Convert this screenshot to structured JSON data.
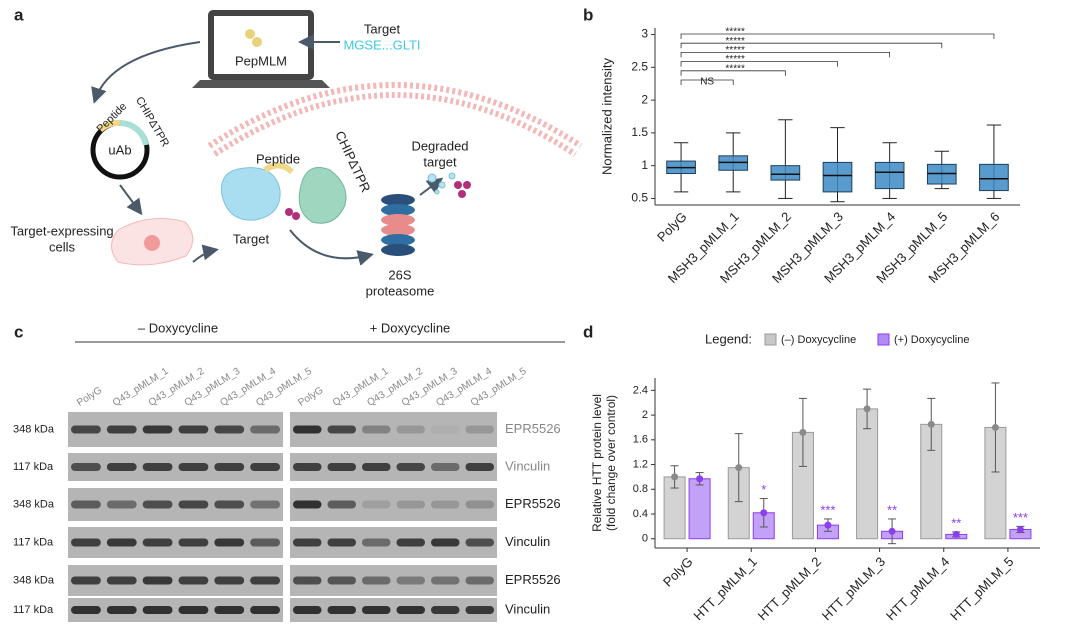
{
  "panel_a": {
    "label": "a",
    "laptop_title": "PepMLM",
    "target_label": "Target",
    "target_sequence": "MGSE...GLTI",
    "plasmid": {
      "peptide": "Peptide",
      "chip": "CHIPΔTPR",
      "center": "uAb"
    },
    "cells": [
      "Target-expressing",
      "cells"
    ],
    "complex": {
      "peptide": "Peptide",
      "chip": "CHIPΔTPR",
      "target": "Target"
    },
    "degraded": [
      "Degraded",
      "target"
    ],
    "proteasome": [
      "26S",
      "proteasome"
    ]
  },
  "chart_data": [
    {
      "type": "box",
      "panel": "b",
      "ylabel": "Normalized intensity",
      "categories": [
        "PolyG",
        "MSH3_pMLM_1",
        "MSH3_pMLM_2",
        "MSH3_pMLM_3",
        "MSH3_pMLM_4",
        "MSH3_pMLM_5",
        "MSH3_pMLM_6"
      ],
      "median": [
        0.97,
        1.05,
        0.87,
        0.85,
        0.9,
        0.88,
        0.8
      ],
      "q1": [
        0.88,
        0.93,
        0.78,
        0.6,
        0.65,
        0.72,
        0.62
      ],
      "q3": [
        1.07,
        1.15,
        1.0,
        1.05,
        1.05,
        1.02,
        1.02
      ],
      "whisker_low": [
        0.6,
        0.6,
        0.5,
        0.45,
        0.5,
        0.65,
        0.5
      ],
      "whisker_high": [
        1.35,
        1.5,
        1.7,
        1.58,
        1.35,
        1.22,
        1.62
      ],
      "color": "#3d8ac4",
      "comparisons": [
        "NS",
        "*****",
        "*****",
        "*****",
        "*****",
        "*****"
      ],
      "ylim": [
        0.4,
        3.1
      ],
      "yticks": [
        0.5,
        1.0,
        1.5,
        2.0,
        2.5,
        3.0
      ]
    },
    {
      "type": "bar",
      "panel": "d",
      "legend_title": "Legend:",
      "ylabel": [
        "Relative HTT protein level",
        "(fold change over control)"
      ],
      "categories": [
        "PolyG",
        "HTT_pMLM_1",
        "HTT_pMLM_2",
        "HTT_pMLM_3",
        "HTT_pMLM_4",
        "HTT_pMLM_5"
      ],
      "series": [
        {
          "name": "(–) Doxycycline",
          "color": "#c8c8c8",
          "edge": "#9a9a9a",
          "values": [
            1.0,
            1.15,
            1.72,
            2.1,
            1.85,
            1.8
          ],
          "errors": [
            0.18,
            0.55,
            0.55,
            0.32,
            0.42,
            0.72
          ]
        },
        {
          "name": "(+) Doxycycline",
          "color": "#b48af5",
          "edge": "#8a3ff0",
          "values": [
            0.97,
            0.42,
            0.22,
            0.12,
            0.07,
            0.15
          ],
          "errors": [
            0.1,
            0.23,
            0.1,
            0.2,
            0.04,
            0.05
          ],
          "significance": [
            null,
            "*",
            "***",
            "**",
            "**",
            "***"
          ]
        }
      ],
      "ylim": [
        -0.15,
        2.6
      ],
      "yticks": [
        0,
        0.4,
        0.8,
        1.2,
        1.6,
        2.0,
        2.4
      ]
    }
  ],
  "panel_c": {
    "label": "c",
    "conditions": [
      "– Doxycycline",
      "+ Doxycycline"
    ],
    "lanes": [
      "PolyG",
      "Q43_pMLM_1",
      "Q43_pMLM_2",
      "Q43_pMLM_3",
      "Q43_pMLM_4",
      "Q43_pMLM_5"
    ],
    "rows": [
      {
        "size": "348 kDa",
        "antibody": "EPR5526"
      },
      {
        "size": "117 kDa",
        "antibody": "Vinculin"
      },
      {
        "size": "348 kDa",
        "antibody": "EPR5526"
      },
      {
        "size": "117 kDa",
        "antibody": "Vinculin"
      },
      {
        "size": "348 kDa",
        "antibody": "EPR5526"
      },
      {
        "size": "117 kDa",
        "antibody": "Vinculin"
      }
    ]
  }
}
